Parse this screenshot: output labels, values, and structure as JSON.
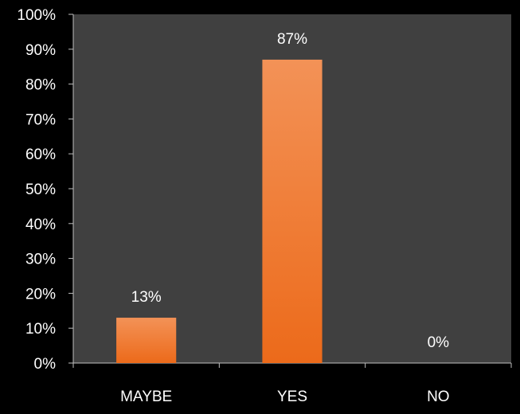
{
  "colors": {
    "background": "#000000",
    "plot_area": "#404040",
    "bar_top": "#F39257",
    "bar_bottom": "#EC6A1A",
    "text": "#FFFFFF",
    "axis": "#BFBFBF"
  },
  "chart_data": {
    "type": "bar",
    "categories": [
      "MAYBE",
      "YES",
      "NO"
    ],
    "values": [
      13,
      87,
      0
    ],
    "data_labels": [
      "13%",
      "87%",
      "0%"
    ],
    "y_tick_labels": [
      "0%",
      "10%",
      "20%",
      "30%",
      "40%",
      "50%",
      "60%",
      "70%",
      "80%",
      "90%",
      "100%"
    ],
    "ylim": [
      0,
      100
    ],
    "grid": false,
    "legend": "none"
  }
}
